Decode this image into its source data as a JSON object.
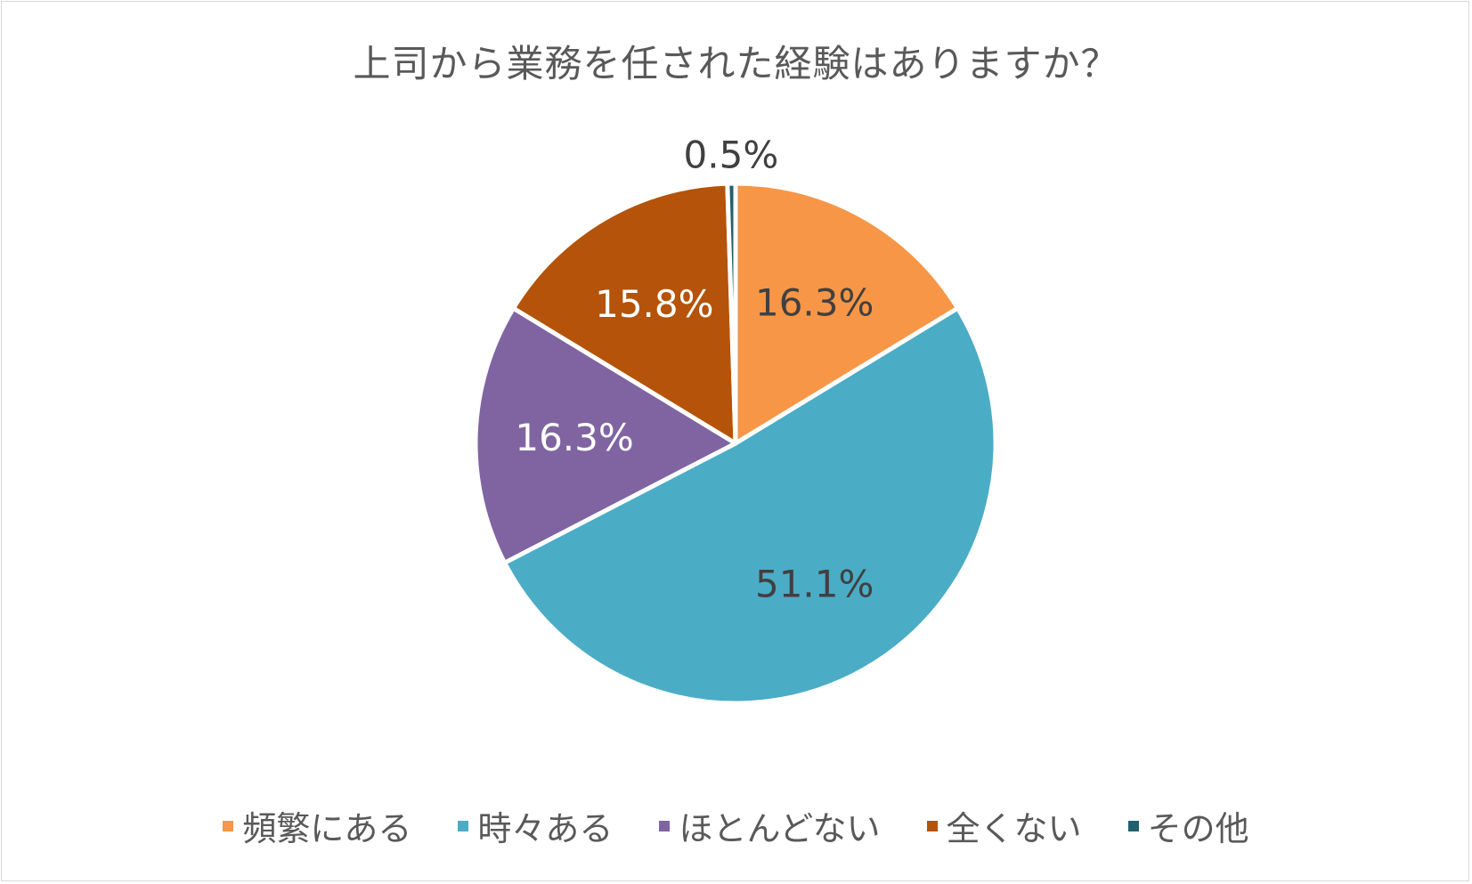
{
  "chart_data": {
    "type": "pie",
    "title": "上司から業務を任された経験はありますか？",
    "slices": [
      {
        "name": "頻繁にある",
        "value": 16.3,
        "label": "16.3%",
        "color": "#F79646",
        "label_color": "#404040"
      },
      {
        "name": "時々ある",
        "value": 51.1,
        "label": "51.1%",
        "color": "#4BACC6",
        "label_color": "#404040"
      },
      {
        "name": "ほとんどない",
        "value": 16.3,
        "label": "16.3%",
        "color": "#8064A2",
        "label_color": "#ffffff"
      },
      {
        "name": "全くない",
        "value": 15.8,
        "label": "15.8%",
        "color": "#B45309",
        "label_color": "#ffffff"
      },
      {
        "name": "その他",
        "value": 0.5,
        "label": "0.5%",
        "color": "#215F6E",
        "label_color": "#404040"
      }
    ],
    "start_angle": "12 o'clock",
    "direction": "clockwise",
    "legend_position": "bottom"
  }
}
